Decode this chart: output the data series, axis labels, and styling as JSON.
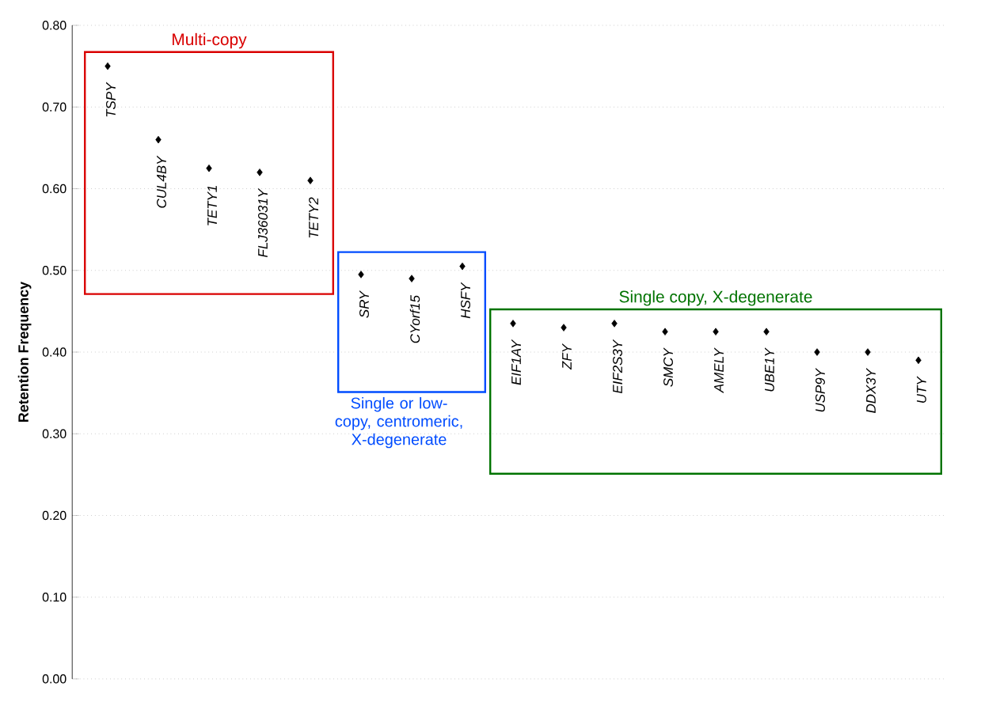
{
  "chart_data": {
    "type": "scatter",
    "categories": [
      "TSPY",
      "CUL4BY",
      "TETY1",
      "FLJ36031Y",
      "TETY2",
      "SRY",
      "CYorf15",
      "HSFY",
      "EIF1AY",
      "ZFY",
      "EIF2S3Y",
      "SMCY",
      "AMELY",
      "UBE1Y",
      "USP9Y",
      "DDX3Y",
      "UTY"
    ],
    "series": [
      {
        "color": "#000000",
        "values": [
          0.75,
          0.66,
          0.625,
          0.62,
          0.61,
          null,
          null,
          null,
          null,
          null,
          null,
          null,
          null,
          null,
          null,
          null,
          null
        ]
      },
      {
        "color": "#000000",
        "values": [
          null,
          null,
          null,
          null,
          null,
          0.495,
          0.49,
          0.505,
          null,
          null,
          null,
          null,
          null,
          null,
          null,
          null,
          null
        ]
      },
      {
        "color": "#000000",
        "values": [
          null,
          null,
          null,
          null,
          null,
          null,
          null,
          null,
          0.435,
          0.43,
          0.435,
          0.425,
          0.425,
          0.425,
          0.4,
          0.4,
          0.39
        ]
      }
    ],
    "ylabel": "Retention Frequency",
    "annotations": [
      "Multi-copy",
      "Single or low-copy, centromeric, X-degenerate",
      "Single copy, X-degenerate"
    ],
    "ylim": [
      0,
      0.8
    ],
    "yticks": [
      {
        "value": 0,
        "label": "0.00"
      },
      {
        "value": 0.1,
        "label": "0.10"
      },
      {
        "value": 0.2,
        "label": "0.20"
      },
      {
        "value": 0.3,
        "label": "0.30"
      },
      {
        "value": 0.4,
        "label": "0.40"
      },
      {
        "value": 0.5,
        "label": "0.50"
      },
      {
        "value": 0.6,
        "label": "0.60"
      },
      {
        "value": 0.7,
        "label": "0.70"
      },
      {
        "value": 0.8,
        "label": "0.80"
      }
    ],
    "tick_labels": "y",
    "grid": "y",
    "marker": "diamond"
  }
}
